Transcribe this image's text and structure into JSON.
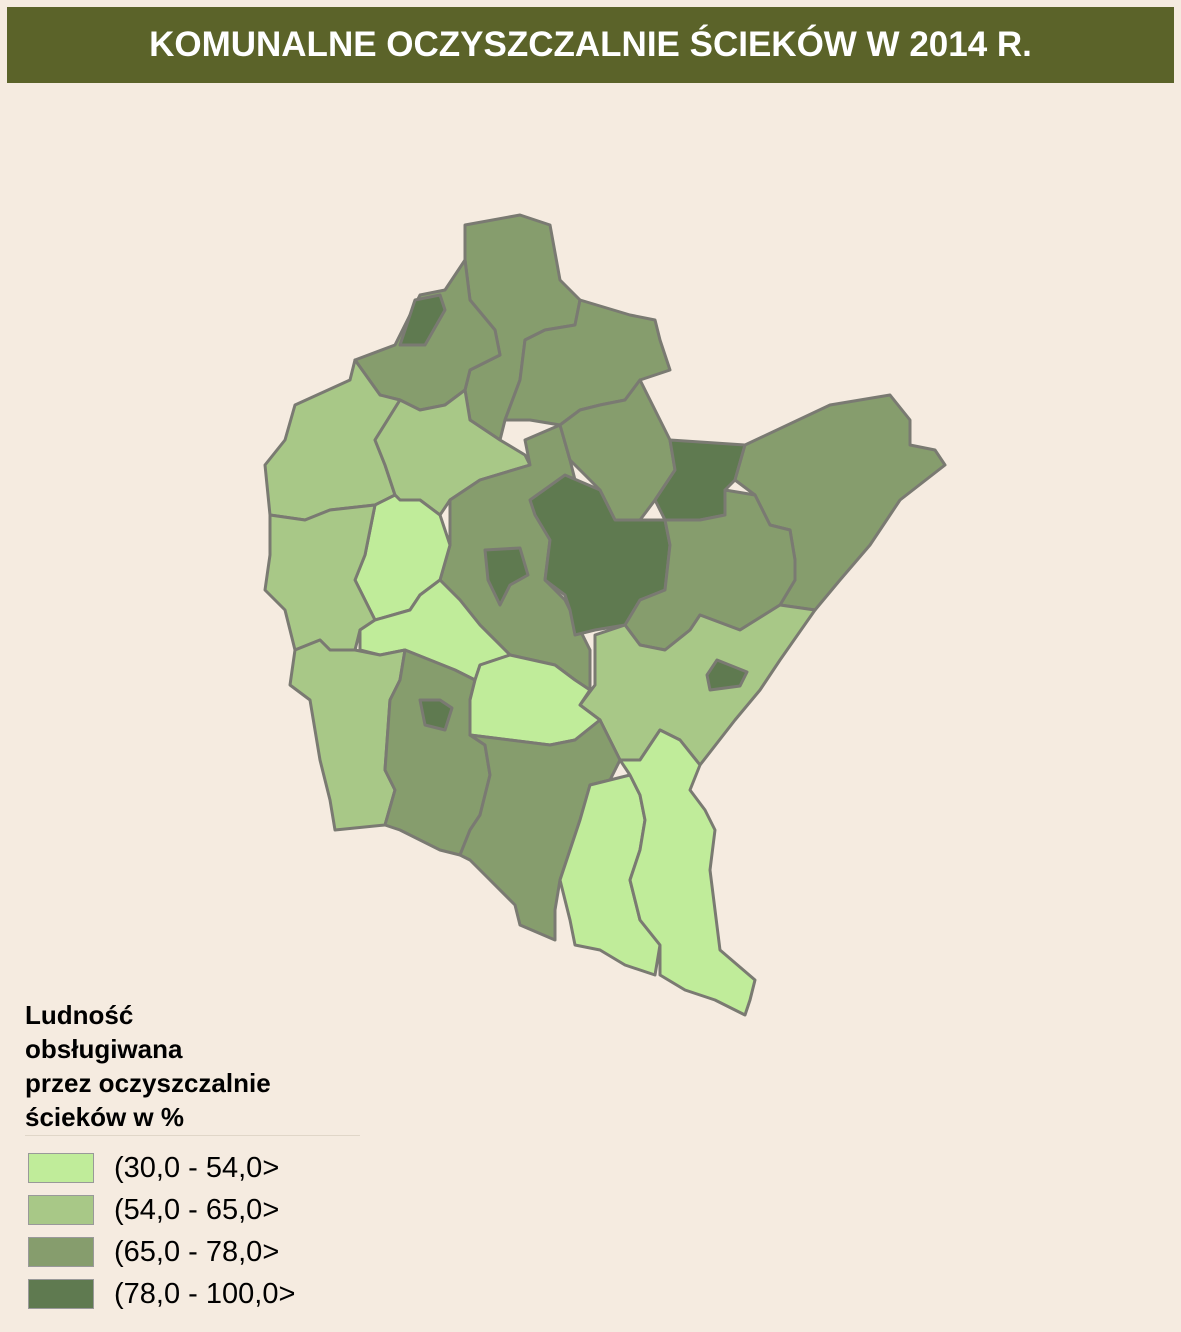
{
  "title": "KOMUNALNE OCZYSZCZALNIE ŚCIEKÓW W 2014 R.",
  "legend": {
    "title": [
      "Ludność",
      "obsługiwana",
      "przez oczyszczalnie",
      "ścieków w %"
    ],
    "items": [
      {
        "label": "(30,0 - 54,0>",
        "color": "#c0ec9a"
      },
      {
        "label": "(54,0 - 65,0>",
        "color": "#a8c887"
      },
      {
        "label": "(65,0 - 78,0>",
        "color": "#869d6d"
      },
      {
        "label": "(78,0 - 100,0>",
        "color": "#5f7a50"
      }
    ]
  }
}
